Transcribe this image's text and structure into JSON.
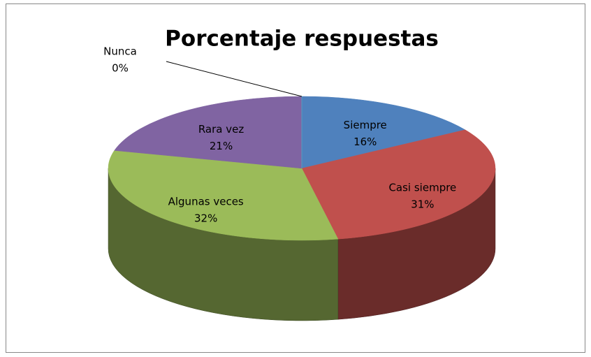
{
  "chart_data": {
    "type": "pie3d",
    "title": "Porcentaje respuestas",
    "categories": [
      "Siempre",
      "Casi siempre",
      "Algunas veces",
      "Rara vez",
      "Nunca"
    ],
    "values": [
      16,
      31,
      32,
      21,
      0
    ],
    "value_labels": [
      "16%",
      "31%",
      "32%",
      "21%",
      "0%"
    ],
    "colors": [
      "#4f81bd",
      "#c0504d",
      "#9bbb59",
      "#8064a2",
      "#4bacc6"
    ]
  }
}
